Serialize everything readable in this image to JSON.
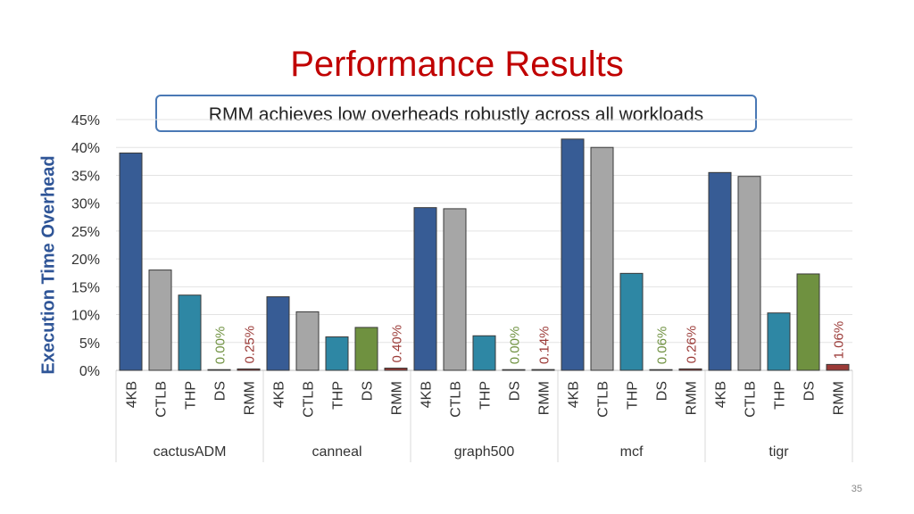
{
  "slide": {
    "title": "Performance Results",
    "callout": "RMM achieves low overheads robustly across all workloads",
    "page_number": "35"
  },
  "colors": {
    "4KB": "#375c95",
    "CTLB": "#a6a6a6",
    "THP": "#2e87a4",
    "DS": "#6f9140",
    "RMM": "#9b3a37",
    "ds_label": "#6f9140",
    "rmm_label": "#9b3a37",
    "title": "#c00000",
    "axis_label": "#2f5597"
  },
  "chart_data": {
    "type": "bar",
    "ylabel": "Execution Time Overhead",
    "ylim": [
      0,
      45
    ],
    "yticks": [
      "0%",
      "5%",
      "10%",
      "15%",
      "20%",
      "25%",
      "30%",
      "35%",
      "40%",
      "45%"
    ],
    "series_names": [
      "4KB",
      "CTLB",
      "THP",
      "DS",
      "RMM"
    ],
    "groups": [
      {
        "name": "cactusADM",
        "values": [
          39,
          18,
          13.5,
          0.0,
          0.25
        ],
        "labels": {
          "DS": "0.00%",
          "RMM": "0.25%"
        }
      },
      {
        "name": "canneal",
        "values": [
          13.2,
          10.5,
          6,
          7.7,
          0.4
        ],
        "labels": {
          "RMM": "0.40%"
        }
      },
      {
        "name": "graph500",
        "values": [
          29.2,
          29,
          6.2,
          0.0,
          0.14
        ],
        "labels": {
          "DS": "0.00%",
          "RMM": "0.14%"
        }
      },
      {
        "name": "mcf",
        "values": [
          41.5,
          40,
          17.4,
          0.06,
          0.26
        ],
        "labels": {
          "DS": "0.06%",
          "RMM": "0.26%"
        }
      },
      {
        "name": "tigr",
        "values": [
          35.5,
          34.8,
          10.3,
          17.3,
          1.06
        ],
        "labels": {
          "RMM": "1.06%"
        }
      }
    ]
  }
}
